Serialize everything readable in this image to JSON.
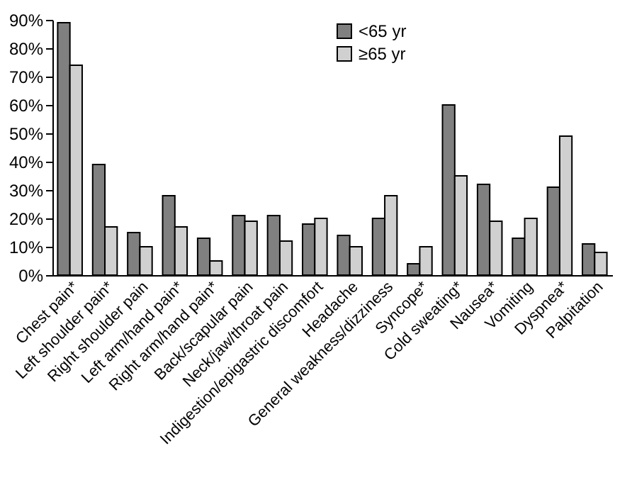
{
  "chart_data": {
    "type": "bar",
    "categories": [
      "Chest pain*",
      "Left shoulder pain*",
      "Right shoulder pain",
      "Left arm/hand pain*",
      "Right arm/hand pain*",
      "Back/scapular pain",
      "Neck/jaw/throat pain",
      "Indigestion/epigastric discomfort",
      "Headache",
      "General weakness/dizziness",
      "Syncope*",
      "Cold sweating*",
      "Nausea*",
      "Vomiting",
      "Dyspnea*",
      "Palpitation"
    ],
    "series": [
      {
        "name": "<65 yr",
        "color": "#808080",
        "values": [
          89,
          39,
          15,
          28,
          13,
          21,
          21,
          18,
          14,
          20,
          4,
          60,
          32,
          13,
          31,
          11
        ]
      },
      {
        "name": "≥65 yr",
        "color": "#d0d0d0",
        "values": [
          74,
          17,
          10,
          17,
          5,
          19,
          12,
          20,
          10,
          28,
          10,
          35,
          19,
          20,
          49,
          8
        ]
      }
    ],
    "ylim": [
      0,
      90
    ],
    "yticks": [
      {
        "value": 0,
        "label": "0%"
      },
      {
        "value": 10,
        "label": "10%"
      },
      {
        "value": 20,
        "label": "20%"
      },
      {
        "value": 30,
        "label": "30%"
      },
      {
        "value": 40,
        "label": "40%"
      },
      {
        "value": 50,
        "label": "50%"
      },
      {
        "value": 60,
        "label": "60%"
      },
      {
        "value": 70,
        "label": "70%"
      },
      {
        "value": 80,
        "label": "80%"
      },
      {
        "value": 90,
        "label": "90%"
      }
    ],
    "grid": false,
    "legend": "top"
  }
}
